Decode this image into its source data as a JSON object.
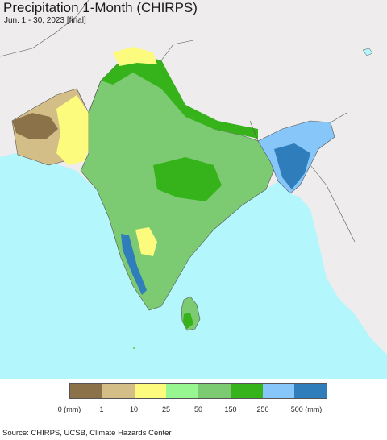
{
  "map": {
    "title": "Precipitation 1-Month (CHIRPS)",
    "subtitle": "Jun. 1 - 30, 2023 [final]",
    "region": "South Asia",
    "colors": {
      "ocean": "#b3f6fc",
      "outside": "#efeced",
      "border": "#555555"
    }
  },
  "legend": {
    "classes": [
      {
        "range": "0-1 mm",
        "color": "#8c7248"
      },
      {
        "range": "1-10 mm",
        "color": "#d2be86"
      },
      {
        "range": "10-25 mm",
        "color": "#fdfb7e"
      },
      {
        "range": "25-50 mm",
        "color": "#98f691"
      },
      {
        "range": "50-150 mm",
        "color": "#7ccb73"
      },
      {
        "range": "150-250 mm",
        "color": "#36b31a"
      },
      {
        "range": "250-500 mm",
        "color": "#86c6f8"
      },
      {
        "range": ">500 mm",
        "color": "#2f7dba"
      }
    ],
    "tick_labels": [
      "0 (mm)",
      "1",
      "10",
      "25",
      "50",
      "150",
      "250",
      "500 (mm)"
    ]
  },
  "footer": {
    "source": "Source: CHIRPS, UCSB, Climate Hazards Center"
  }
}
